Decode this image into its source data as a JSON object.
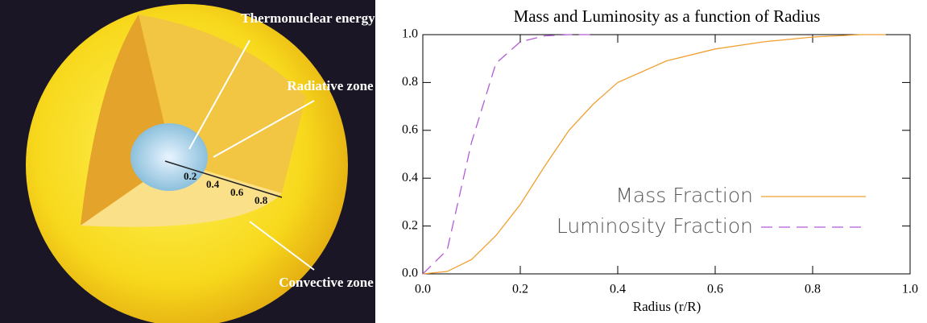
{
  "illustration": {
    "labels": [
      "Thermonuclear energy core",
      "Radiative zone",
      "Convective zone"
    ],
    "scale_labels": [
      "0.2",
      "0.4",
      "0.6",
      "0.8"
    ]
  },
  "chart_data": {
    "type": "line",
    "title": "Mass and Luminosity as a function of Radius",
    "x_label": "Radius (r/R)",
    "x": [
      0,
      0.05,
      0.1,
      0.15,
      0.2,
      0.25,
      0.3,
      0.35,
      0.4,
      0.5,
      0.6,
      0.7,
      0.8,
      0.9,
      0.95
    ],
    "series": [
      {
        "name": "Mass Fraction",
        "color": "#f0a030",
        "dash": false,
        "values": [
          0,
          0.01,
          0.06,
          0.16,
          0.29,
          0.45,
          0.6,
          0.71,
          0.8,
          0.89,
          0.94,
          0.97,
          0.99,
          1.0,
          1.0
        ]
      },
      {
        "name": "Luminosity Fraction",
        "color": "#b45ad8",
        "dash": true,
        "values": [
          0,
          0.1,
          0.55,
          0.88,
          0.97,
          0.995,
          1.0,
          1.0,
          null,
          null,
          null,
          null,
          null,
          null,
          null
        ]
      }
    ],
    "xlim": [
      0,
      1
    ],
    "ylim": [
      0,
      1
    ],
    "xticks": [
      {
        "value": 0,
        "label": "0.0"
      },
      0.2,
      0.4,
      0.6,
      0.8,
      {
        "value": 1,
        "label": "1.0"
      }
    ],
    "yticks": [
      {
        "value": 0,
        "label": "0.0"
      },
      0.2,
      0.4,
      0.6,
      0.8,
      {
        "value": 1,
        "label": "1.0"
      }
    ],
    "legend": "lower right"
  }
}
